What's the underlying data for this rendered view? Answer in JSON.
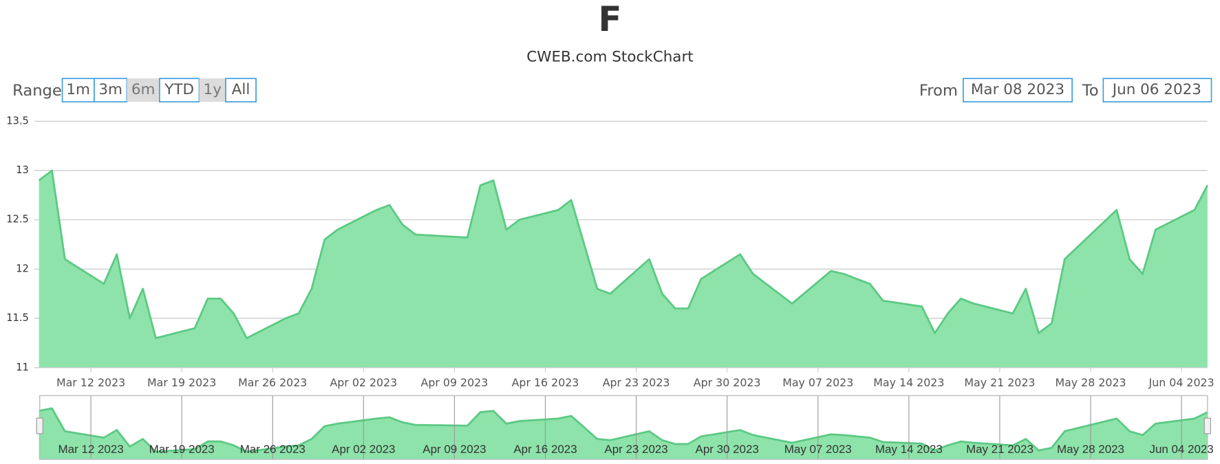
{
  "chart_data": {
    "type": "area",
    "title": "F",
    "subtitle": "CWEB.com StockChart",
    "x": [
      "2023-03-08",
      "2023-03-09",
      "2023-03-10",
      "2023-03-13",
      "2023-03-14",
      "2023-03-15",
      "2023-03-16",
      "2023-03-17",
      "2023-03-20",
      "2023-03-21",
      "2023-03-22",
      "2023-03-23",
      "2023-03-24",
      "2023-03-27",
      "2023-03-28",
      "2023-03-29",
      "2023-03-30",
      "2023-03-31",
      "2023-04-03",
      "2023-04-04",
      "2023-04-05",
      "2023-04-06",
      "2023-04-10",
      "2023-04-11",
      "2023-04-12",
      "2023-04-13",
      "2023-04-14",
      "2023-04-17",
      "2023-04-18",
      "2023-04-19",
      "2023-04-20",
      "2023-04-21",
      "2023-04-24",
      "2023-04-25",
      "2023-04-26",
      "2023-04-27",
      "2023-04-28",
      "2023-05-01",
      "2023-05-02",
      "2023-05-03",
      "2023-05-04",
      "2023-05-05",
      "2023-05-08",
      "2023-05-09",
      "2023-05-10",
      "2023-05-11",
      "2023-05-12",
      "2023-05-15",
      "2023-05-16",
      "2023-05-17",
      "2023-05-18",
      "2023-05-19",
      "2023-05-22",
      "2023-05-23",
      "2023-05-24",
      "2023-05-25",
      "2023-05-26",
      "2023-05-30",
      "2023-05-31",
      "2023-06-01",
      "2023-06-02",
      "2023-06-05",
      "2023-06-06"
    ],
    "series": [
      {
        "color": "#5cc983",
        "fill": "#8ee3aa",
        "values": [
          12.9,
          13.0,
          12.1,
          11.85,
          12.15,
          11.5,
          11.8,
          11.3,
          11.4,
          11.7,
          11.7,
          11.55,
          11.3,
          11.5,
          11.55,
          11.8,
          12.3,
          12.4,
          12.6,
          12.65,
          12.45,
          12.35,
          12.32,
          12.85,
          12.9,
          12.4,
          12.5,
          12.6,
          12.7,
          12.25,
          11.8,
          11.75,
          12.1,
          11.75,
          11.6,
          11.6,
          11.9,
          12.15,
          11.95,
          11.85,
          11.75,
          11.65,
          11.98,
          11.95,
          11.9,
          11.85,
          11.68,
          11.62,
          11.35,
          11.55,
          11.7,
          11.65,
          11.55,
          11.8,
          11.35,
          11.45,
          12.1,
          12.6,
          12.1,
          11.95,
          12.4,
          12.6,
          12.85
        ]
      }
    ],
    "xlim": [
      "2023-03-08",
      "2023-06-06"
    ],
    "xticks": [
      {
        "value": "2023-03-12",
        "label": "Mar 12 2023"
      },
      {
        "value": "2023-03-19",
        "label": "Mar 19 2023"
      },
      {
        "value": "2023-03-26",
        "label": "Mar 26 2023"
      },
      {
        "value": "2023-04-02",
        "label": "Apr 02 2023"
      },
      {
        "value": "2023-04-09",
        "label": "Apr 09 2023"
      },
      {
        "value": "2023-04-16",
        "label": "Apr 16 2023"
      },
      {
        "value": "2023-04-23",
        "label": "Apr 23 2023"
      },
      {
        "value": "2023-04-30",
        "label": "Apr 30 2023"
      },
      {
        "value": "2023-05-07",
        "label": "May 07 2023"
      },
      {
        "value": "2023-05-14",
        "label": "May 14 2023"
      },
      {
        "value": "2023-05-21",
        "label": "May 21 2023"
      },
      {
        "value": "2023-05-28",
        "label": "May 28 2023"
      },
      {
        "value": "2023-06-04",
        "label": "Jun 04 2023"
      }
    ],
    "ylim": [
      11,
      13.5
    ],
    "yticks": [
      11,
      11.5,
      12,
      12.5,
      13,
      13.5
    ],
    "grid": true,
    "navigator": true
  },
  "range_selector": {
    "label": "Range",
    "buttons": [
      "1m",
      "3m",
      "6m",
      "YTD",
      "1y",
      "All"
    ],
    "disabled": [
      2,
      4
    ]
  },
  "date_inputs": {
    "from_label": "From",
    "from": "Mar 08 2023",
    "to_label": "To",
    "to": "Jun 06 2023"
  }
}
